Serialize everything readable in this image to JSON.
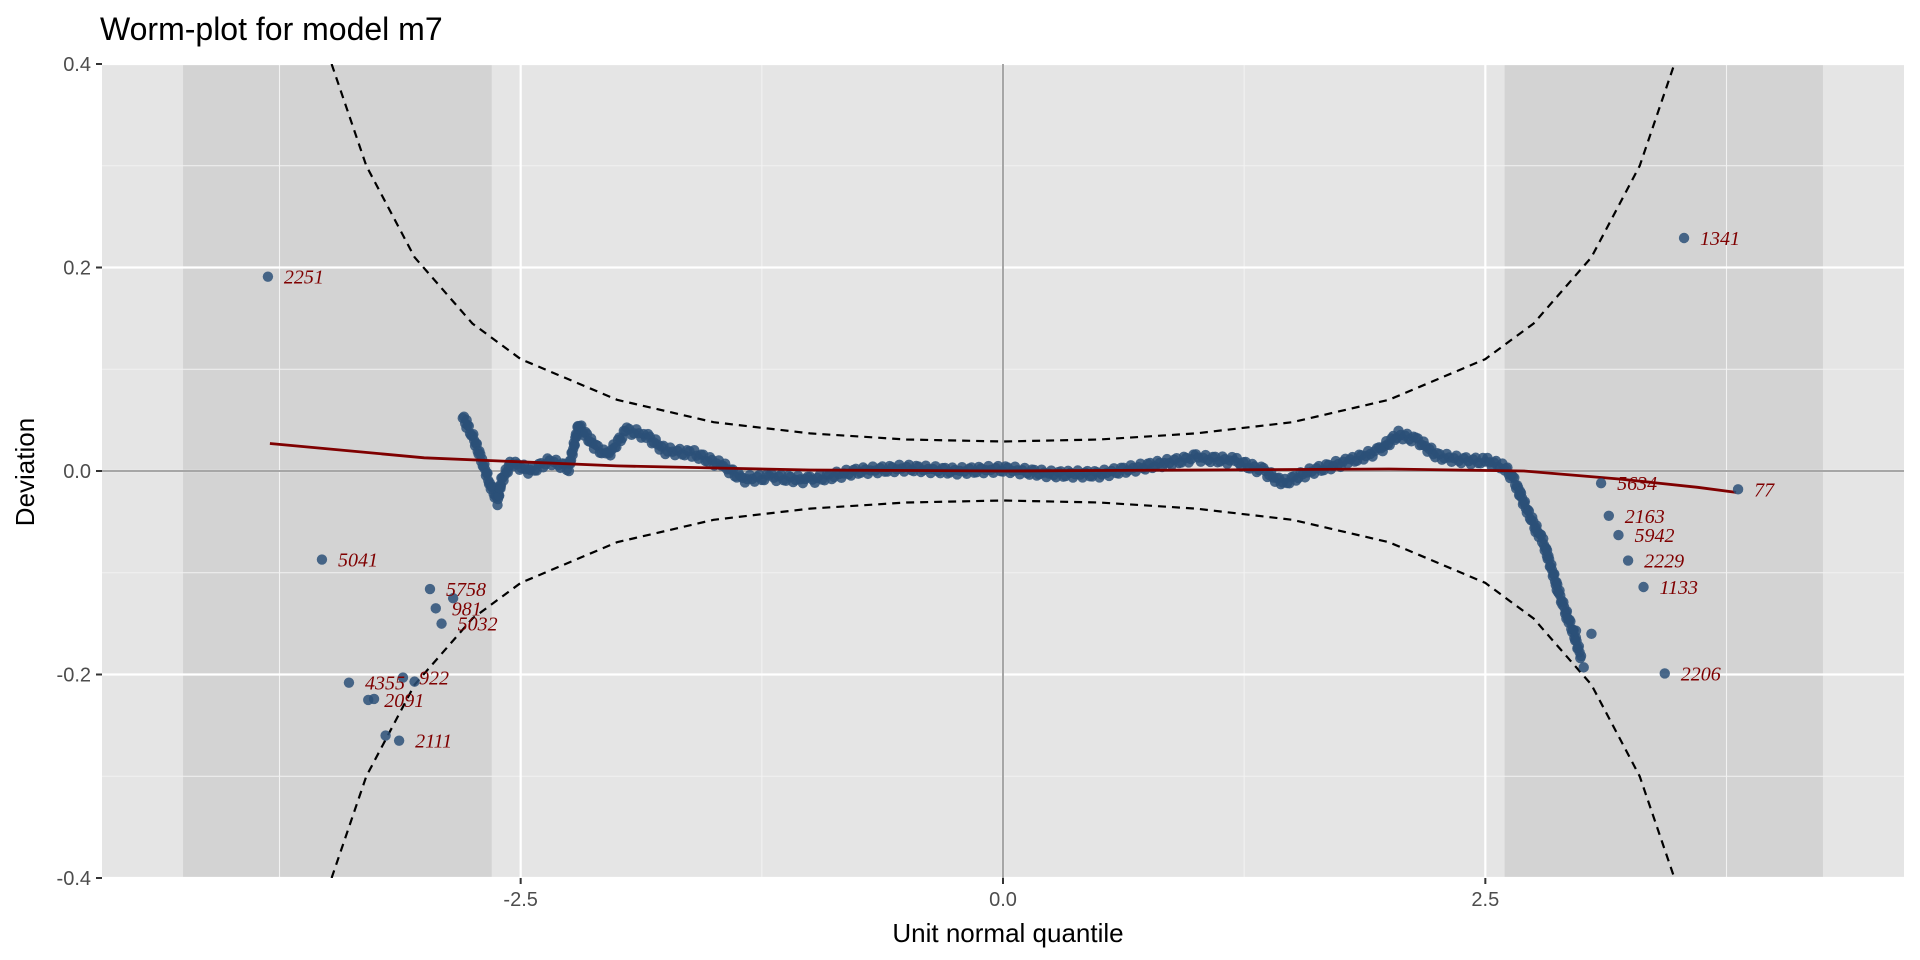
{
  "chart_data": {
    "type": "scatter",
    "title": "Worm-plot for model m7",
    "xlabel": "Unit normal quantile",
    "ylabel": "Deviation",
    "xlim": [
      -4.67,
      4.67
    ],
    "ylim": [
      -0.4,
      0.4
    ],
    "x_ticks": [
      -2.5,
      0.0,
      2.5
    ],
    "x_tick_labels": [
      "-2.5",
      "0.0",
      "2.5"
    ],
    "y_ticks": [
      -0.4,
      -0.2,
      0.0,
      0.2,
      0.4
    ],
    "y_tick_labels": [
      "-0.4",
      "-0.2",
      "0.0",
      "0.2",
      "0.4"
    ],
    "grid": true,
    "shaded_x_ranges": [
      [
        -4.25,
        -2.65
      ],
      [
        2.6,
        4.25
      ]
    ],
    "colors": {
      "panel": "#e5e5e5",
      "band": "#d3d3d3",
      "points": "#2b5078",
      "fit_line": "#7f0000",
      "labels": "#7f0000",
      "envelope": "#000000",
      "reference": "#a6a6a6"
    },
    "series": [
      {
        "type": "line",
        "values": [
          {
            "x": -3.8,
            "y": 0.027
          },
          {
            "x": -3.0,
            "y": 0.013
          },
          {
            "x": -2.0,
            "y": 0.005
          },
          {
            "x": -1.0,
            "y": 0.001
          },
          {
            "x": 0.0,
            "y": 0.0
          },
          {
            "x": 1.0,
            "y": 0.001
          },
          {
            "x": 2.0,
            "y": 0.002
          },
          {
            "x": 2.7,
            "y": 0.0
          },
          {
            "x": 3.2,
            "y": -0.008
          },
          {
            "x": 3.6,
            "y": -0.016
          },
          {
            "x": 3.8,
            "y": -0.021
          }
        ]
      },
      {
        "type": "dashed-envelope-upper",
        "values": [
          {
            "x": -3.48,
            "y": 0.4
          },
          {
            "x": -3.3,
            "y": 0.3
          },
          {
            "x": -3.05,
            "y": 0.21
          },
          {
            "x": -2.75,
            "y": 0.145
          },
          {
            "x": -2.5,
            "y": 0.11
          },
          {
            "x": -2.0,
            "y": 0.07
          },
          {
            "x": -1.5,
            "y": 0.048
          },
          {
            "x": -1.0,
            "y": 0.037
          },
          {
            "x": -0.5,
            "y": 0.031
          },
          {
            "x": 0.0,
            "y": 0.029
          },
          {
            "x": 0.5,
            "y": 0.031
          },
          {
            "x": 1.0,
            "y": 0.037
          },
          {
            "x": 1.5,
            "y": 0.048
          },
          {
            "x": 2.0,
            "y": 0.07
          },
          {
            "x": 2.5,
            "y": 0.11
          },
          {
            "x": 2.75,
            "y": 0.145
          },
          {
            "x": 3.05,
            "y": 0.21
          },
          {
            "x": 3.3,
            "y": 0.3
          },
          {
            "x": 3.48,
            "y": 0.4
          }
        ]
      },
      {
        "type": "dashed-envelope-lower",
        "values": [
          {
            "x": -3.48,
            "y": -0.4
          },
          {
            "x": -3.3,
            "y": -0.3
          },
          {
            "x": -3.05,
            "y": -0.21
          },
          {
            "x": -2.75,
            "y": -0.145
          },
          {
            "x": -2.5,
            "y": -0.11
          },
          {
            "x": -2.0,
            "y": -0.07
          },
          {
            "x": -1.5,
            "y": -0.048
          },
          {
            "x": -1.0,
            "y": -0.037
          },
          {
            "x": -0.5,
            "y": -0.031
          },
          {
            "x": 0.0,
            "y": -0.029
          },
          {
            "x": 0.5,
            "y": -0.031
          },
          {
            "x": 1.0,
            "y": -0.037
          },
          {
            "x": 1.5,
            "y": -0.048
          },
          {
            "x": 2.0,
            "y": -0.07
          },
          {
            "x": 2.5,
            "y": -0.11
          },
          {
            "x": 2.75,
            "y": -0.145
          },
          {
            "x": 3.05,
            "y": -0.21
          },
          {
            "x": 3.3,
            "y": -0.3
          },
          {
            "x": 3.48,
            "y": -0.4
          }
        ]
      },
      {
        "type": "worm-trace",
        "values": [
          {
            "x": -2.8,
            "y": 0.052
          },
          {
            "x": -2.75,
            "y": 0.035
          },
          {
            "x": -2.7,
            "y": 0.01
          },
          {
            "x": -2.66,
            "y": -0.012
          },
          {
            "x": -2.62,
            "y": -0.03
          },
          {
            "x": -2.6,
            "y": -0.01
          },
          {
            "x": -2.55,
            "y": 0.008
          },
          {
            "x": -2.45,
            "y": 0.0
          },
          {
            "x": -2.35,
            "y": 0.01
          },
          {
            "x": -2.25,
            "y": 0.003
          },
          {
            "x": -2.2,
            "y": 0.045
          },
          {
            "x": -2.12,
            "y": 0.025
          },
          {
            "x": -2.05,
            "y": 0.015
          },
          {
            "x": -1.95,
            "y": 0.04
          },
          {
            "x": -1.85,
            "y": 0.035
          },
          {
            "x": -1.75,
            "y": 0.02
          },
          {
            "x": -1.6,
            "y": 0.017
          },
          {
            "x": -1.45,
            "y": 0.005
          },
          {
            "x": -1.35,
            "y": -0.008
          },
          {
            "x": -1.2,
            "y": -0.006
          },
          {
            "x": -1.0,
            "y": -0.009
          },
          {
            "x": -0.75,
            "y": 0.0
          },
          {
            "x": -0.5,
            "y": 0.003
          },
          {
            "x": -0.25,
            "y": 0.0
          },
          {
            "x": 0.0,
            "y": 0.002
          },
          {
            "x": 0.25,
            "y": -0.003
          },
          {
            "x": 0.5,
            "y": -0.003
          },
          {
            "x": 0.75,
            "y": 0.005
          },
          {
            "x": 1.0,
            "y": 0.013
          },
          {
            "x": 1.2,
            "y": 0.01
          },
          {
            "x": 1.35,
            "y": 0.0
          },
          {
            "x": 1.45,
            "y": -0.012
          },
          {
            "x": 1.6,
            "y": 0.0
          },
          {
            "x": 1.8,
            "y": 0.01
          },
          {
            "x": 1.95,
            "y": 0.02
          },
          {
            "x": 2.05,
            "y": 0.036
          },
          {
            "x": 2.15,
            "y": 0.03
          },
          {
            "x": 2.25,
            "y": 0.015
          },
          {
            "x": 2.4,
            "y": 0.01
          },
          {
            "x": 2.5,
            "y": 0.01
          },
          {
            "x": 2.6,
            "y": 0.004
          },
          {
            "x": 2.65,
            "y": -0.01
          },
          {
            "x": 2.72,
            "y": -0.04
          },
          {
            "x": 2.8,
            "y": -0.07
          },
          {
            "x": 2.85,
            "y": -0.1
          },
          {
            "x": 2.9,
            "y": -0.13
          },
          {
            "x": 2.95,
            "y": -0.155
          },
          {
            "x": 3.0,
            "y": -0.185
          }
        ]
      },
      {
        "type": "labeled-points",
        "values": [
          {
            "x": -3.81,
            "y": 0.191,
            "label": "2251"
          },
          {
            "x": -3.53,
            "y": -0.087,
            "label": "5041"
          },
          {
            "x": -2.97,
            "y": -0.116,
            "label": "5758"
          },
          {
            "x": -2.94,
            "y": -0.135,
            "label": "981"
          },
          {
            "x": -2.91,
            "y": -0.15,
            "label": "5032"
          },
          {
            "x": -3.11,
            "y": -0.203,
            "label": "922"
          },
          {
            "x": -3.39,
            "y": -0.208,
            "label": "4355"
          },
          {
            "x": -3.29,
            "y": -0.225,
            "label": "2091"
          },
          {
            "x": -3.13,
            "y": -0.265,
            "label": "2111"
          },
          {
            "x": 3.53,
            "y": 0.229,
            "label": "1341"
          },
          {
            "x": 3.81,
            "y": -0.018,
            "label": "77"
          },
          {
            "x": 3.1,
            "y": -0.012,
            "label": "5634"
          },
          {
            "x": 3.14,
            "y": -0.044,
            "label": "2163"
          },
          {
            "x": 3.19,
            "y": -0.063,
            "label": "5942"
          },
          {
            "x": 3.24,
            "y": -0.088,
            "label": "2229"
          },
          {
            "x": 3.32,
            "y": -0.114,
            "label": "1133"
          },
          {
            "x": 3.43,
            "y": -0.199,
            "label": "2206"
          }
        ]
      },
      {
        "type": "unlabeled-points",
        "values": [
          {
            "x": -2.85,
            "y": -0.125
          },
          {
            "x": -3.05,
            "y": -0.207
          },
          {
            "x": -3.2,
            "y": -0.26
          },
          {
            "x": -3.26,
            "y": -0.224
          },
          {
            "x": -2.78,
            "y": 0.05
          },
          {
            "x": 2.68,
            "y": -0.02
          },
          {
            "x": 2.76,
            "y": -0.06
          },
          {
            "x": 2.82,
            "y": -0.078
          },
          {
            "x": 2.87,
            "y": -0.117
          },
          {
            "x": 2.92,
            "y": -0.145
          },
          {
            "x": 2.97,
            "y": -0.157
          },
          {
            "x": 3.01,
            "y": -0.193
          },
          {
            "x": 3.05,
            "y": -0.16
          }
        ]
      }
    ]
  }
}
